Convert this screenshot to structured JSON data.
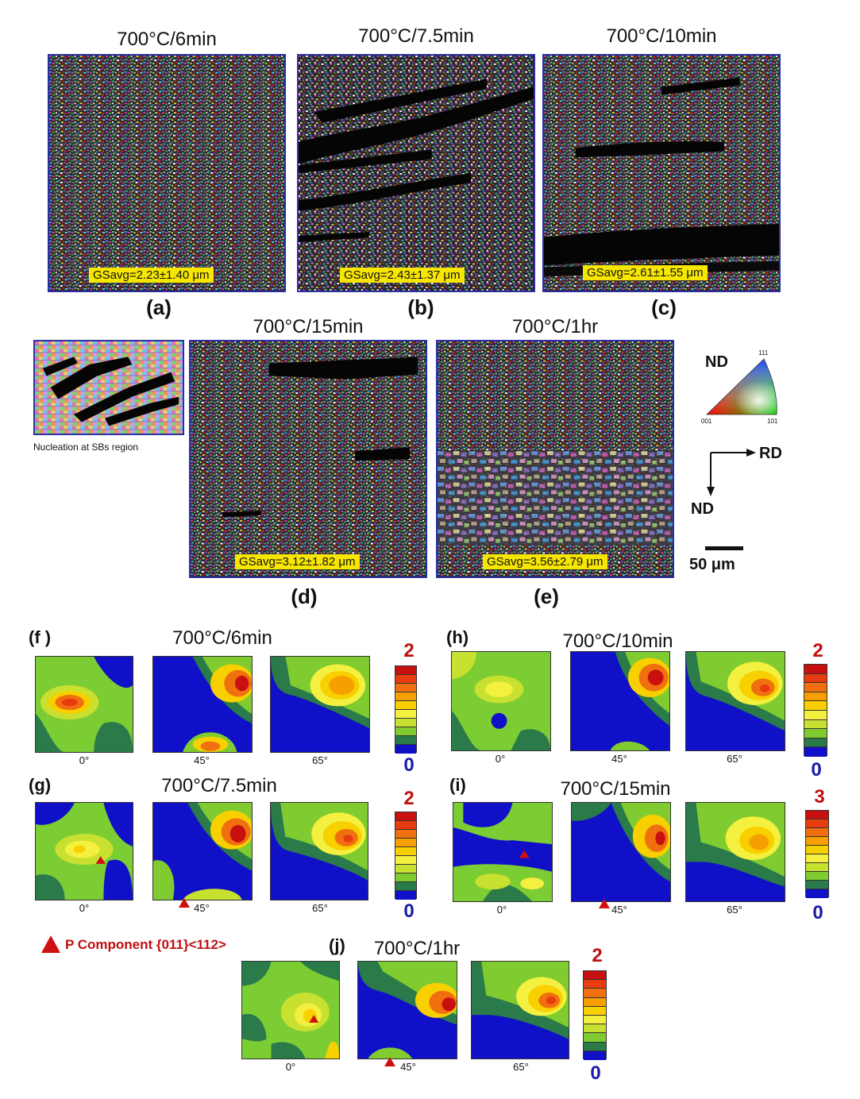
{
  "ebsd_panels": [
    {
      "id": "a",
      "title": "700°C/6min",
      "gs": "GSavg=2.23±1.40  μm",
      "label": "(a)"
    },
    {
      "id": "b",
      "title": "700°C/7.5min",
      "gs": "GSavg=2.43±1.37  μm",
      "label": "(b)"
    },
    {
      "id": "c",
      "title": "700°C/10min",
      "gs": "GSavg=2.61±1.55  μm",
      "label": "(c)"
    },
    {
      "id": "d",
      "title": "700°C/15min",
      "gs": "GSavg=3.12±1.82  μm",
      "label": "(d)"
    },
    {
      "id": "e",
      "title": "700°C/1hr",
      "gs": "GSavg=3.56±2.79  μm",
      "label": "(e)"
    }
  ],
  "inset_caption": "Nucleation at SBs region",
  "ipf_legend": {
    "axis": "ND",
    "corner_top": "111",
    "corner_left": "001",
    "corner_right": "101"
  },
  "directions": {
    "horizontal": "RD",
    "vertical": "ND"
  },
  "scale_bar": "50 μm",
  "odf_panels": [
    {
      "id": "f",
      "label": "(f )",
      "title": "700°C/6min",
      "max": "2",
      "min": "0"
    },
    {
      "id": "h",
      "label": "(h)",
      "title": "700°C/10min",
      "max": "2",
      "min": "0"
    },
    {
      "id": "g",
      "label": "(g)",
      "title": "700°C/7.5min",
      "max": "2",
      "min": "0"
    },
    {
      "id": "i",
      "label": "(i)",
      "title": "700°C/15min",
      "max": "3",
      "min": "0"
    },
    {
      "id": "j",
      "label": "(j)",
      "title": "700°C/1hr",
      "max": "2",
      "min": "0"
    }
  ],
  "odf_section_angles": [
    "0°",
    "45°",
    "65°"
  ],
  "p_component_legend": "P Component {011}<112>",
  "colors": {
    "frame_blue": "#2b2fa6",
    "gs_yellow": "#f6e600",
    "marker_red": "#d01010",
    "odf_blue": "#1010c8"
  }
}
